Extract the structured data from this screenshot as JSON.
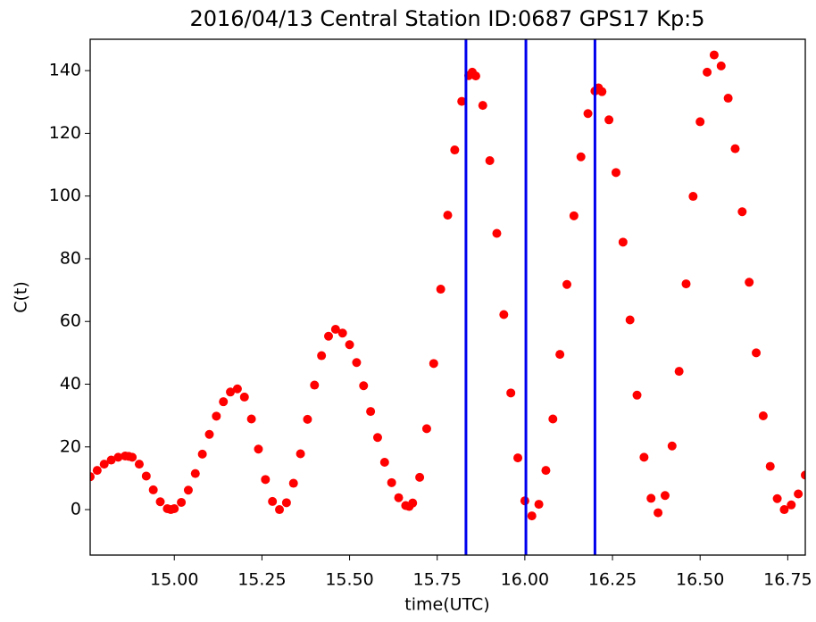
{
  "chart_data": {
    "type": "scatter",
    "title": "2016/04/13 Central Station ID:0687 GPS17 Kp:5",
    "xlabel": "time(UTC)",
    "ylabel": "C(t)",
    "xlim": [
      14.76,
      16.8
    ],
    "ylim": [
      -14.5,
      150
    ],
    "xticks": [
      {
        "value": 15,
        "label": "15.00"
      },
      {
        "value": 15.25,
        "label": "15.25"
      },
      {
        "value": 15.5,
        "label": "15.50"
      },
      {
        "value": 15.75,
        "label": "15.75"
      },
      {
        "value": 16,
        "label": "16.00"
      },
      {
        "value": 16.25,
        "label": "16.25"
      },
      {
        "value": 16.5,
        "label": "16.50"
      },
      {
        "value": 16.75,
        "label": "16.75"
      }
    ],
    "yticks": [
      0,
      20,
      40,
      60,
      80,
      100,
      120,
      140
    ],
    "vlines": {
      "color": "#0000ee",
      "values": [
        15.832,
        16.003,
        16.2
      ]
    },
    "series": [
      {
        "color": "#ff0000",
        "x": [
          14.76,
          14.78,
          14.8,
          14.82,
          14.84,
          14.86,
          14.87,
          14.88,
          14.9,
          14.92,
          14.94,
          14.96,
          14.98,
          14.99,
          15.0,
          15.02,
          15.04,
          15.06,
          15.08,
          15.1,
          15.12,
          15.14,
          15.16,
          15.18,
          15.2,
          15.22,
          15.24,
          15.26,
          15.28,
          15.3,
          15.32,
          15.34,
          15.36,
          15.38,
          15.4,
          15.42,
          15.44,
          15.46,
          15.48,
          15.5,
          15.52,
          15.54,
          15.56,
          15.58,
          15.6,
          15.62,
          15.64,
          15.66,
          15.67,
          15.68,
          15.7,
          15.72,
          15.74,
          15.76,
          15.78,
          15.8,
          15.82,
          15.84,
          15.85,
          15.86,
          15.88,
          15.9,
          15.92,
          15.94,
          15.96,
          15.98,
          16.0,
          16.02,
          16.04,
          16.06,
          16.08,
          16.1,
          16.12,
          16.14,
          16.16,
          16.18,
          16.2,
          16.21,
          16.22,
          16.24,
          16.26,
          16.28,
          16.3,
          16.32,
          16.34,
          16.36,
          16.38,
          16.4,
          16.42,
          16.44,
          16.46,
          16.48,
          16.5,
          16.52,
          16.54,
          16.56,
          16.58,
          16.6,
          16.62,
          16.64,
          16.66,
          16.68,
          16.7,
          16.72,
          16.74,
          16.76,
          16.78,
          16.8
        ],
        "values": [
          10.5,
          12.5,
          14.5,
          15.8,
          16.7,
          17.1,
          17,
          16.7,
          14.5,
          10.7,
          6.3,
          2.5,
          0.3,
          0,
          0.3,
          2.3,
          6.2,
          11.5,
          17.7,
          24,
          29.8,
          34.4,
          37.5,
          38.5,
          35.9,
          28.9,
          19.3,
          9.6,
          2.6,
          0,
          2.2,
          8.4,
          17.8,
          28.8,
          39.7,
          49.1,
          55.3,
          57.5,
          56.3,
          52.6,
          46.9,
          39.5,
          31.3,
          23,
          15.1,
          8.6,
          3.8,
          1.3,
          1,
          2.1,
          10.3,
          25.8,
          46.6,
          70.3,
          93.9,
          114.7,
          130.2,
          138.4,
          139.5,
          138.3,
          128.9,
          111.3,
          88.1,
          62.2,
          37.2,
          16.5,
          2.8,
          -2,
          1.7,
          12.5,
          28.9,
          49.5,
          71.8,
          93.7,
          112.5,
          126.3,
          133.5,
          134.5,
          133.3,
          124.3,
          107.5,
          85.3,
          60.5,
          36.5,
          16.7,
          3.6,
          -1,
          4.5,
          20.3,
          44.1,
          72,
          99.9,
          123.7,
          139.5,
          145,
          141.5,
          131.2,
          115.1,
          95,
          72.5,
          50,
          29.9,
          13.8,
          3.5,
          0,
          1.5,
          5,
          11
        ]
      }
    ]
  }
}
